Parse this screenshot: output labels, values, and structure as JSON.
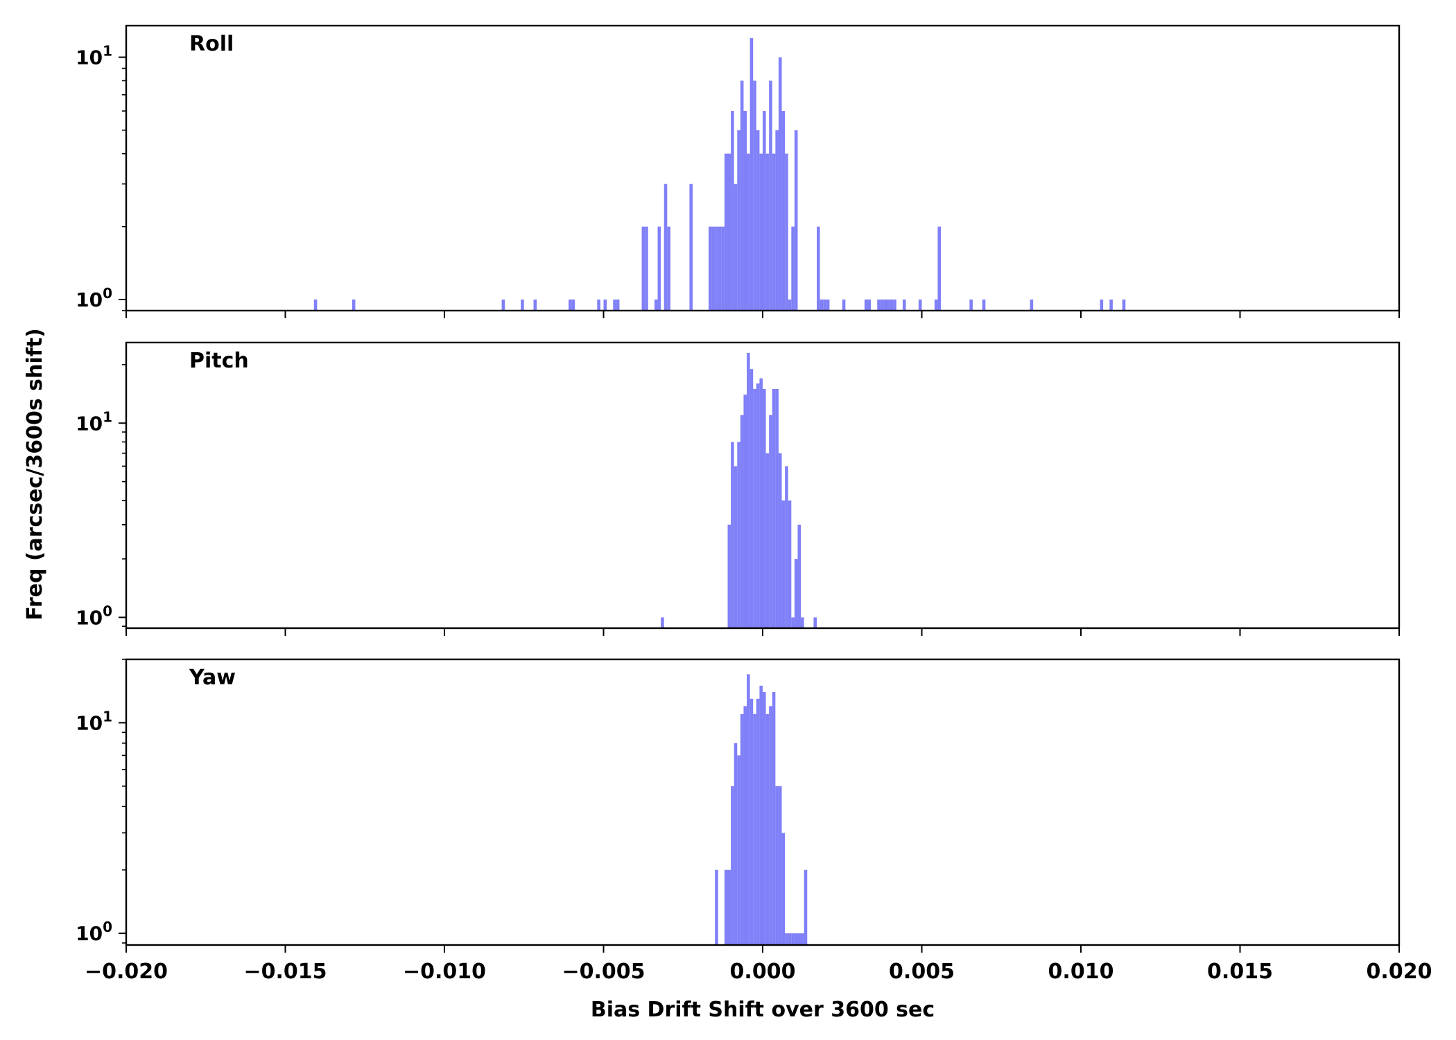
{
  "chart_data": {
    "type": "bar",
    "xlabel": "Bias Drift Shift over 3600 sec",
    "ylabel": "Freq (arcsec/3600s shift)",
    "xlim": [
      -0.02,
      0.02
    ],
    "x_ticks": [
      "−0.020",
      "−0.015",
      "−0.010",
      "−0.005",
      "0.000",
      "0.005",
      "0.010",
      "0.015",
      "0.020"
    ],
    "x_tick_values": [
      -0.02,
      -0.015,
      -0.01,
      -0.005,
      0.0,
      0.005,
      0.01,
      0.015,
      0.02
    ],
    "y_scale": "log",
    "bin_width": 0.0001,
    "bar_color": "#8080f8",
    "shared_x": true,
    "panels": [
      {
        "label": "Roll",
        "ylim": [
          0.9,
          13.5
        ],
        "y_ticks": [
          {
            "value": 1,
            "base": "10",
            "exp": "0"
          },
          {
            "value": 10,
            "base": "10",
            "exp": "1"
          }
        ],
        "bins": [
          [
            -0.0141,
            1
          ],
          [
            -0.0129,
            1
          ],
          [
            -0.0082,
            1
          ],
          [
            -0.0076,
            1
          ],
          [
            -0.0072,
            1
          ],
          [
            -0.0061,
            1
          ],
          [
            -0.006,
            1
          ],
          [
            -0.0052,
            1
          ],
          [
            -0.005,
            1
          ],
          [
            -0.0047,
            1
          ],
          [
            -0.0046,
            1
          ],
          [
            -0.0038,
            2
          ],
          [
            -0.0037,
            2
          ],
          [
            -0.0034,
            1
          ],
          [
            -0.0033,
            2
          ],
          [
            -0.0031,
            3
          ],
          [
            -0.003,
            2
          ],
          [
            -0.0023,
            3
          ],
          [
            -0.0017,
            2
          ],
          [
            -0.0016,
            2
          ],
          [
            -0.0015,
            2
          ],
          [
            -0.0014,
            2
          ],
          [
            -0.0013,
            2
          ],
          [
            -0.0012,
            4
          ],
          [
            -0.0011,
            4
          ],
          [
            -0.001,
            6
          ],
          [
            -0.0009,
            3
          ],
          [
            -0.0008,
            5
          ],
          [
            -0.0007,
            8
          ],
          [
            -0.0006,
            6
          ],
          [
            -0.0005,
            4
          ],
          [
            -0.0004,
            12
          ],
          [
            -0.0003,
            8
          ],
          [
            -0.0002,
            5
          ],
          [
            -0.0001,
            4
          ],
          [
            0.0,
            6
          ],
          [
            0.0001,
            4
          ],
          [
            0.0002,
            8
          ],
          [
            0.0003,
            4
          ],
          [
            0.0004,
            5
          ],
          [
            0.0005,
            10
          ],
          [
            0.0006,
            6
          ],
          [
            0.0007,
            4
          ],
          [
            0.0008,
            1
          ],
          [
            0.0009,
            2
          ],
          [
            0.001,
            5
          ],
          [
            0.0017,
            2
          ],
          [
            0.0018,
            1
          ],
          [
            0.0019,
            1
          ],
          [
            0.002,
            1
          ],
          [
            0.0025,
            1
          ],
          [
            0.0032,
            1
          ],
          [
            0.0033,
            1
          ],
          [
            0.0036,
            1
          ],
          [
            0.0037,
            1
          ],
          [
            0.0038,
            1
          ],
          [
            0.0039,
            1
          ],
          [
            0.004,
            1
          ],
          [
            0.0041,
            1
          ],
          [
            0.0044,
            1
          ],
          [
            0.0049,
            1
          ],
          [
            0.0054,
            1
          ],
          [
            0.0055,
            2
          ],
          [
            0.0065,
            1
          ],
          [
            0.0069,
            1
          ],
          [
            0.0084,
            1
          ],
          [
            0.0106,
            1
          ],
          [
            0.0109,
            1
          ],
          [
            0.0113,
            1
          ]
        ]
      },
      {
        "label": "Pitch",
        "ylim": [
          0.88,
          26
        ],
        "y_ticks": [
          {
            "value": 1,
            "base": "10",
            "exp": "0"
          },
          {
            "value": 10,
            "base": "10",
            "exp": "1"
          }
        ],
        "bins": [
          [
            -0.0032,
            1
          ],
          [
            -0.0011,
            3
          ],
          [
            -0.001,
            8
          ],
          [
            -0.0009,
            6
          ],
          [
            -0.0008,
            8
          ],
          [
            -0.0007,
            11
          ],
          [
            -0.0006,
            14
          ],
          [
            -0.0005,
            23
          ],
          [
            -0.0004,
            19
          ],
          [
            -0.0003,
            15
          ],
          [
            -0.0002,
            16
          ],
          [
            -0.0001,
            17
          ],
          [
            0.0,
            15
          ],
          [
            0.0001,
            7
          ],
          [
            0.0002,
            11
          ],
          [
            0.0003,
            15
          ],
          [
            0.0004,
            15
          ],
          [
            0.0005,
            7
          ],
          [
            0.0006,
            4
          ],
          [
            0.0007,
            6
          ],
          [
            0.0008,
            4
          ],
          [
            0.0009,
            1
          ],
          [
            0.001,
            2
          ],
          [
            0.0011,
            3
          ],
          [
            0.0012,
            1
          ],
          [
            0.0016,
            1
          ]
        ]
      },
      {
        "label": "Yaw",
        "ylim": [
          0.88,
          20
        ],
        "y_ticks": [
          {
            "value": 1,
            "base": "10",
            "exp": "0"
          },
          {
            "value": 10,
            "base": "10",
            "exp": "1"
          }
        ],
        "bins": [
          [
            -0.0015,
            2
          ],
          [
            -0.0012,
            2
          ],
          [
            -0.0011,
            2
          ],
          [
            -0.001,
            5
          ],
          [
            -0.0009,
            8
          ],
          [
            -0.0008,
            7
          ],
          [
            -0.0007,
            11
          ],
          [
            -0.0006,
            12
          ],
          [
            -0.0005,
            17
          ],
          [
            -0.0004,
            13
          ],
          [
            -0.0003,
            11
          ],
          [
            -0.0002,
            13
          ],
          [
            -0.0001,
            15
          ],
          [
            0.0,
            14
          ],
          [
            0.0001,
            11
          ],
          [
            0.0002,
            12
          ],
          [
            0.0003,
            14
          ],
          [
            0.0004,
            5
          ],
          [
            0.0005,
            5
          ],
          [
            0.0006,
            3
          ],
          [
            0.0007,
            1
          ],
          [
            0.0008,
            1
          ],
          [
            0.0009,
            1
          ],
          [
            0.001,
            1
          ],
          [
            0.0011,
            1
          ],
          [
            0.0012,
            1
          ],
          [
            0.0013,
            2
          ]
        ]
      }
    ]
  }
}
